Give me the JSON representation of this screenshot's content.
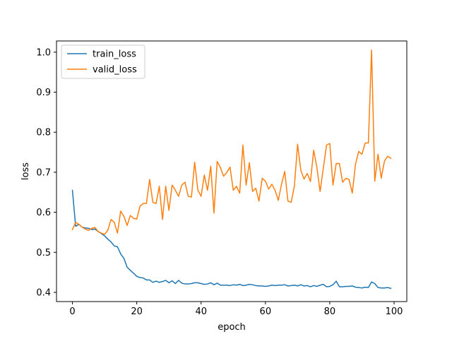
{
  "chart_data": {
    "type": "line",
    "title": "",
    "xlabel": "epoch",
    "ylabel": "loss",
    "xlim": [
      -4.95,
      103.95
    ],
    "ylim": [
      0.377,
      1.028
    ],
    "xticks": [
      0,
      20,
      40,
      60,
      80,
      100
    ],
    "yticks": [
      0.4,
      0.5,
      0.6,
      0.7,
      0.8,
      0.9,
      1.0
    ],
    "ytick_labels": [
      "0.4",
      "0.5",
      "0.6",
      "0.7",
      "0.8",
      "0.9",
      "1.0"
    ],
    "grid": false,
    "legend_position": "upper-left",
    "series": [
      {
        "name": "train_loss",
        "color": "#1f77b4",
        "x": [
          0,
          1,
          2,
          3,
          4,
          5,
          6,
          7,
          8,
          9,
          10,
          11,
          12,
          13,
          14,
          15,
          16,
          17,
          18,
          19,
          20,
          21,
          22,
          23,
          24,
          25,
          26,
          27,
          28,
          29,
          30,
          31,
          32,
          33,
          34,
          35,
          36,
          37,
          38,
          39,
          40,
          41,
          42,
          43,
          44,
          45,
          46,
          47,
          48,
          49,
          50,
          51,
          52,
          53,
          54,
          55,
          56,
          57,
          58,
          59,
          60,
          61,
          62,
          63,
          64,
          65,
          66,
          67,
          68,
          69,
          70,
          71,
          72,
          73,
          74,
          75,
          76,
          77,
          78,
          79,
          80,
          81,
          82,
          83,
          84,
          85,
          86,
          87,
          88,
          89,
          90,
          91,
          92,
          93,
          94,
          95,
          96,
          97,
          98,
          99
        ],
        "values": [
          0.655,
          0.565,
          0.57,
          0.563,
          0.561,
          0.56,
          0.557,
          0.558,
          0.552,
          0.547,
          0.541,
          0.533,
          0.526,
          0.516,
          0.514,
          0.496,
          0.485,
          0.463,
          0.455,
          0.448,
          0.44,
          0.437,
          0.436,
          0.431,
          0.431,
          0.425,
          0.428,
          0.425,
          0.427,
          0.43,
          0.424,
          0.429,
          0.422,
          0.43,
          0.423,
          0.421,
          0.421,
          0.422,
          0.424,
          0.424,
          0.422,
          0.42,
          0.421,
          0.424,
          0.419,
          0.423,
          0.418,
          0.418,
          0.418,
          0.417,
          0.419,
          0.418,
          0.42,
          0.417,
          0.418,
          0.42,
          0.419,
          0.417,
          0.416,
          0.416,
          0.415,
          0.416,
          0.418,
          0.417,
          0.418,
          0.418,
          0.419,
          0.416,
          0.417,
          0.418,
          0.416,
          0.419,
          0.416,
          0.417,
          0.414,
          0.417,
          0.415,
          0.418,
          0.42,
          0.414,
          0.415,
          0.419,
          0.428,
          0.414,
          0.414,
          0.415,
          0.415,
          0.416,
          0.413,
          0.412,
          0.411,
          0.413,
          0.412,
          0.426,
          0.422,
          0.412,
          0.411,
          0.411,
          0.412,
          0.41
        ]
      },
      {
        "name": "valid_loss",
        "color": "#ff7f0e",
        "x": [
          0,
          1,
          2,
          3,
          4,
          5,
          6,
          7,
          8,
          9,
          10,
          11,
          12,
          13,
          14,
          15,
          16,
          17,
          18,
          19,
          20,
          21,
          22,
          23,
          24,
          25,
          26,
          27,
          28,
          29,
          30,
          31,
          32,
          33,
          34,
          35,
          36,
          37,
          38,
          39,
          40,
          41,
          42,
          43,
          44,
          45,
          46,
          47,
          48,
          49,
          50,
          51,
          52,
          53,
          54,
          55,
          56,
          57,
          58,
          59,
          60,
          61,
          62,
          63,
          64,
          65,
          66,
          67,
          68,
          69,
          70,
          71,
          72,
          73,
          74,
          75,
          76,
          77,
          78,
          79,
          80,
          81,
          82,
          83,
          84,
          85,
          86,
          87,
          88,
          89,
          90,
          91,
          92,
          93,
          94,
          95,
          96,
          97,
          98,
          99
        ],
        "values": [
          0.557,
          0.575,
          0.57,
          0.563,
          0.558,
          0.555,
          0.56,
          0.562,
          0.552,
          0.548,
          0.545,
          0.555,
          0.582,
          0.575,
          0.548,
          0.603,
          0.59,
          0.567,
          0.592,
          0.585,
          0.583,
          0.615,
          0.622,
          0.622,
          0.682,
          0.625,
          0.622,
          0.665,
          0.582,
          0.665,
          0.605,
          0.668,
          0.655,
          0.64,
          0.668,
          0.675,
          0.64,
          0.638,
          0.725,
          0.655,
          0.64,
          0.693,
          0.655,
          0.715,
          0.598,
          0.727,
          0.712,
          0.69,
          0.7,
          0.713,
          0.655,
          0.665,
          0.648,
          0.768,
          0.668,
          0.724,
          0.652,
          0.66,
          0.628,
          0.685,
          0.678,
          0.658,
          0.67,
          0.655,
          0.63,
          0.67,
          0.702,
          0.628,
          0.625,
          0.665,
          0.77,
          0.705,
          0.683,
          0.697,
          0.677,
          0.755,
          0.712,
          0.652,
          0.71,
          0.768,
          0.772,
          0.668,
          0.722,
          0.722,
          0.675,
          0.685,
          0.682,
          0.648,
          0.72,
          0.752,
          0.745,
          0.773,
          0.773,
          1.005,
          0.678,
          0.745,
          0.685,
          0.728,
          0.74,
          0.735
        ]
      }
    ]
  }
}
